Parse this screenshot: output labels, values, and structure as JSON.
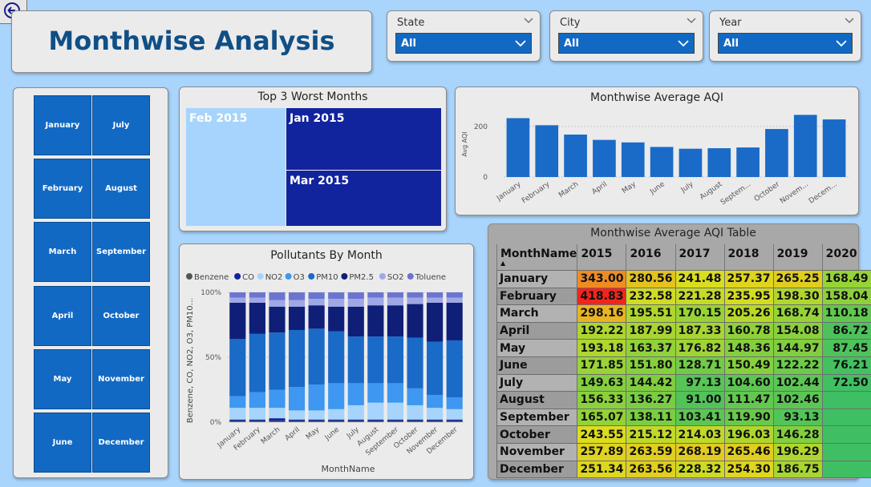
{
  "page": {
    "title": "Monthwise Analysis"
  },
  "slicers": [
    {
      "label": "State",
      "value": "All"
    },
    {
      "label": "City",
      "value": "All"
    },
    {
      "label": "Year",
      "value": "All"
    }
  ],
  "months": [
    "January",
    "February",
    "March",
    "April",
    "May",
    "June",
    "July",
    "August",
    "September",
    "October",
    "November",
    "December"
  ],
  "treemap": {
    "title": "Top 3 Worst Months",
    "items": [
      "Feb 2015",
      "Jan 2015",
      "Mar 2015"
    ]
  },
  "colors": {
    "button": "#1269c3",
    "bar": "#1a6ac8",
    "treemap_light": "#a6d4fc",
    "treemap_dark": "#12239e",
    "heat_scale": [
      "#f2221b",
      "#ee9a25",
      "#dcdd1f",
      "#8cd13a",
      "#3ebf63"
    ],
    "pollutants": [
      "#555555",
      "#12239e",
      "#a6d4fc",
      "#3e97f0",
      "#1a6ac8",
      "#0f1f78",
      "#9fa8e6",
      "#6b75d0"
    ]
  },
  "chart_data": [
    {
      "type": "bar",
      "title": "Monthwise Average AQI",
      "ylabel": "Avg AQI",
      "xlabel": "",
      "categories": [
        "January",
        "February",
        "March",
        "April",
        "May",
        "June",
        "July",
        "August",
        "September",
        "October",
        "November",
        "December"
      ],
      "tick_labels": [
        "January",
        "February",
        "March",
        "April",
        "May",
        "June",
        "July",
        "August",
        "Septem...",
        "October",
        "Novem...",
        "Decem..."
      ],
      "values": [
        233,
        205,
        168,
        147,
        137,
        119,
        112,
        114,
        117,
        190,
        246,
        228
      ],
      "ylim": [
        0,
        260
      ],
      "yticks": [
        "0",
        "200"
      ],
      "grid": true
    },
    {
      "type": "bar",
      "stacked": "100%",
      "title": "Pollutants By Month",
      "xlabel": "MonthName",
      "ylabel": "Benzene, CO, NO2, O3, PM10...",
      "yticks": [
        "0%",
        "50%",
        "100%"
      ],
      "legend_position": "top",
      "categories": [
        "January",
        "February",
        "March",
        "April",
        "May",
        "June",
        "July",
        "August",
        "September",
        "October",
        "November",
        "December"
      ],
      "series": [
        {
          "name": "Benzene",
          "values": [
            1,
            1,
            1,
            1,
            1,
            1,
            1,
            1,
            1,
            1,
            1,
            1
          ]
        },
        {
          "name": "CO",
          "values": [
            1,
            1,
            2,
            1,
            1,
            1,
            1,
            1,
            1,
            1,
            1,
            1
          ]
        },
        {
          "name": "NO2",
          "values": [
            9,
            9,
            8,
            7,
            7,
            8,
            11,
            13,
            13,
            11,
            9,
            8
          ]
        },
        {
          "name": "O3",
          "values": [
            9,
            12,
            14,
            18,
            20,
            20,
            17,
            15,
            15,
            13,
            10,
            9
          ]
        },
        {
          "name": "PM10",
          "values": [
            44,
            45,
            44,
            44,
            43,
            40,
            36,
            36,
            36,
            39,
            41,
            44
          ]
        },
        {
          "name": "PM2.5",
          "values": [
            28,
            24,
            20,
            18,
            18,
            19,
            23,
            24,
            24,
            26,
            30,
            29
          ]
        },
        {
          "name": "SO2",
          "values": [
            4,
            4,
            5,
            5,
            5,
            6,
            6,
            6,
            6,
            5,
            4,
            4
          ]
        },
        {
          "name": "Toluene",
          "values": [
            4,
            4,
            6,
            6,
            5,
            5,
            5,
            4,
            4,
            4,
            4,
            4
          ]
        }
      ]
    },
    {
      "type": "table",
      "title": "Monthwise Average AQI Table",
      "columns": [
        "MonthName",
        "2015",
        "2016",
        "2017",
        "2018",
        "2019",
        "2020"
      ],
      "rows": [
        {
          "month": "January",
          "values": [
            "343.00",
            "280.56",
            "241.48",
            "257.37",
            "265.25",
            "168.49"
          ]
        },
        {
          "month": "February",
          "values": [
            "418.83",
            "232.58",
            "221.28",
            "235.95",
            "198.30",
            "158.04"
          ]
        },
        {
          "month": "March",
          "values": [
            "298.16",
            "195.51",
            "170.15",
            "205.26",
            "168.74",
            "110.18"
          ]
        },
        {
          "month": "April",
          "values": [
            "192.22",
            "187.99",
            "187.33",
            "160.78",
            "154.08",
            "86.72"
          ]
        },
        {
          "month": "May",
          "values": [
            "193.18",
            "163.37",
            "176.82",
            "148.36",
            "144.97",
            "87.45"
          ]
        },
        {
          "month": "June",
          "values": [
            "171.85",
            "151.80",
            "128.71",
            "150.49",
            "122.22",
            "76.21"
          ]
        },
        {
          "month": "July",
          "values": [
            "149.63",
            "144.42",
            "97.13",
            "104.60",
            "102.44",
            "72.50"
          ]
        },
        {
          "month": "August",
          "values": [
            "156.33",
            "136.27",
            "91.00",
            "111.47",
            "102.46",
            ""
          ]
        },
        {
          "month": "September",
          "values": [
            "165.07",
            "138.11",
            "103.41",
            "119.90",
            "93.13",
            ""
          ]
        },
        {
          "month": "October",
          "values": [
            "243.55",
            "215.12",
            "214.03",
            "196.03",
            "146.28",
            ""
          ]
        },
        {
          "month": "November",
          "values": [
            "257.89",
            "263.59",
            "268.19",
            "265.46",
            "196.29",
            ""
          ]
        },
        {
          "month": "December",
          "values": [
            "251.34",
            "263.56",
            "228.32",
            "254.30",
            "186.75",
            ""
          ]
        }
      ]
    }
  ]
}
